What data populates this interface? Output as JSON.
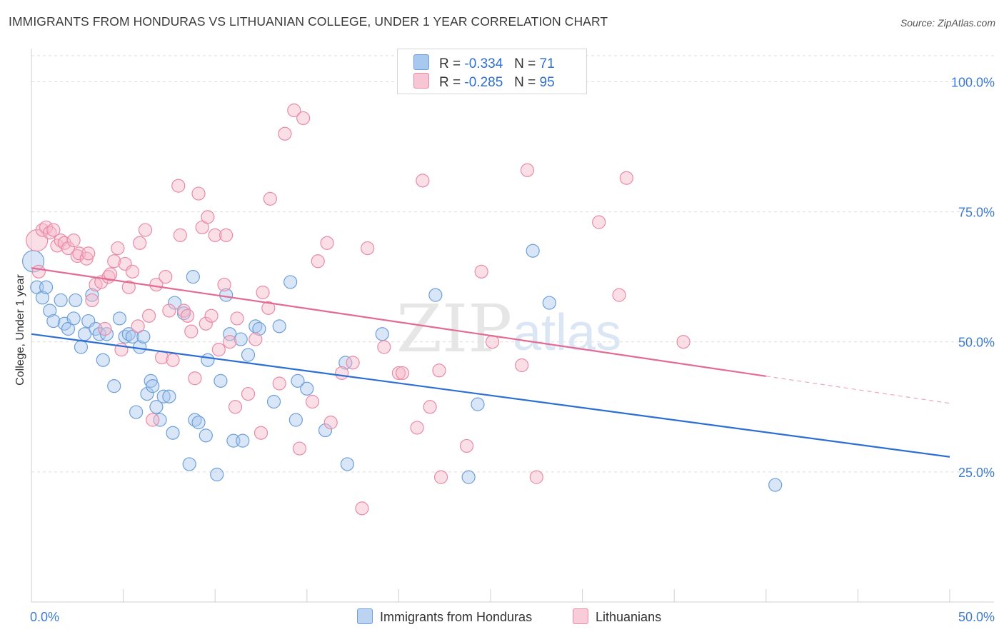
{
  "header": {
    "title": "IMMIGRANTS FROM HONDURAS VS LITHUANIAN COLLEGE, UNDER 1 YEAR CORRELATION CHART",
    "source": "Source: ZipAtlas.com"
  },
  "legend_stats": [
    {
      "r_label": "R =",
      "r_value": "-0.334",
      "n_label": "N =",
      "n_value": "71",
      "color": "#a8c8f0"
    },
    {
      "r_label": "R =",
      "r_value": "-0.285",
      "n_label": "N =",
      "n_value": "95",
      "color": "#f6b8ca"
    }
  ],
  "watermark": {
    "zip": "ZIP",
    "atlas": "atlas"
  },
  "bottom_legend": [
    {
      "label": "Immigrants from Honduras",
      "color": "#a8c8f0"
    },
    {
      "label": "Lithuanians",
      "color": "#f6b8ca"
    }
  ],
  "chart_data": {
    "type": "scatter",
    "title": "IMMIGRANTS FROM HONDURAS VS LITHUANIAN COLLEGE, UNDER 1 YEAR CORRELATION CHART",
    "xlabel": "",
    "ylabel": "College, Under 1 year",
    "xlim": [
      0,
      50
    ],
    "ylim": [
      0,
      105
    ],
    "x_tick_labels": [
      {
        "value": 0,
        "label": "0.0%"
      },
      {
        "value": 50,
        "label": "50.0%"
      }
    ],
    "y_tick_labels": [
      {
        "value": 25,
        "label": "25.0%"
      },
      {
        "value": 50,
        "label": "50.0%"
      },
      {
        "value": 75,
        "label": "75.0%"
      },
      {
        "value": 100,
        "label": "100.0%"
      }
    ],
    "grid": true,
    "series": [
      {
        "name": "Immigrants from Honduras",
        "color": "#a8c8f0",
        "stroke": "#6d9fd9",
        "trend_color": "#2b6fd4",
        "trend": {
          "x0": 0,
          "y0": 51.5,
          "x1": 50,
          "y1": 27.9,
          "solid_until": 50
        },
        "points": [
          [
            0.1,
            65.5
          ],
          [
            0.3,
            60.5
          ],
          [
            0.6,
            58.5
          ],
          [
            0.8,
            60.5
          ],
          [
            1.0,
            56.0
          ],
          [
            1.2,
            54.0
          ],
          [
            1.6,
            58.0
          ],
          [
            1.8,
            53.5
          ],
          [
            2.0,
            52.5
          ],
          [
            2.3,
            54.5
          ],
          [
            2.4,
            58.0
          ],
          [
            2.7,
            49.0
          ],
          [
            2.9,
            51.5
          ],
          [
            3.1,
            54.0
          ],
          [
            3.3,
            59.0
          ],
          [
            3.5,
            52.5
          ],
          [
            3.7,
            51.5
          ],
          [
            3.9,
            46.5
          ],
          [
            4.1,
            51.5
          ],
          [
            4.5,
            41.5
          ],
          [
            4.8,
            54.5
          ],
          [
            5.1,
            51.0
          ],
          [
            5.3,
            51.5
          ],
          [
            5.5,
            51.0
          ],
          [
            5.7,
            36.5
          ],
          [
            5.9,
            49.0
          ],
          [
            6.1,
            51.0
          ],
          [
            6.3,
            40.0
          ],
          [
            6.5,
            42.5
          ],
          [
            6.6,
            41.5
          ],
          [
            6.8,
            37.5
          ],
          [
            7.0,
            35.0
          ],
          [
            7.2,
            39.5
          ],
          [
            7.5,
            39.5
          ],
          [
            7.7,
            32.5
          ],
          [
            7.8,
            57.5
          ],
          [
            8.3,
            55.5
          ],
          [
            8.6,
            26.5
          ],
          [
            8.8,
            62.5
          ],
          [
            8.9,
            35.0
          ],
          [
            9.1,
            34.5
          ],
          [
            9.5,
            32.0
          ],
          [
            9.6,
            46.5
          ],
          [
            10.1,
            24.5
          ],
          [
            10.3,
            42.5
          ],
          [
            10.6,
            59.0
          ],
          [
            10.8,
            51.5
          ],
          [
            11.0,
            31.0
          ],
          [
            11.5,
            31.0
          ],
          [
            11.4,
            50.5
          ],
          [
            11.8,
            47.5
          ],
          [
            12.2,
            53.0
          ],
          [
            12.4,
            52.5
          ],
          [
            13.2,
            38.5
          ],
          [
            13.5,
            53.0
          ],
          [
            14.1,
            61.5
          ],
          [
            14.4,
            35.0
          ],
          [
            14.5,
            42.5
          ],
          [
            15.0,
            41.0
          ],
          [
            16.0,
            33.0
          ],
          [
            17.1,
            46.0
          ],
          [
            17.2,
            26.5
          ],
          [
            19.1,
            51.5
          ],
          [
            22.0,
            59.0
          ],
          [
            23.8,
            24.0
          ],
          [
            24.3,
            38.0
          ],
          [
            27.3,
            67.5
          ],
          [
            28.2,
            57.5
          ],
          [
            40.5,
            22.5
          ]
        ]
      },
      {
        "name": "Lithuanians",
        "color": "#f6b8ca",
        "stroke": "#e98aa6",
        "trend_color": "#e36a92",
        "trend": {
          "x0": 0,
          "y0": 64.2,
          "x1": 50,
          "y1": 38.2,
          "solid_until": 40
        },
        "points": [
          [
            0.3,
            69.5
          ],
          [
            0.4,
            63.5
          ],
          [
            0.6,
            71.5
          ],
          [
            0.8,
            72.0
          ],
          [
            1.0,
            71.0
          ],
          [
            1.2,
            71.5
          ],
          [
            1.4,
            68.5
          ],
          [
            1.6,
            69.5
          ],
          [
            1.8,
            69.0
          ],
          [
            2.0,
            68.0
          ],
          [
            2.3,
            69.5
          ],
          [
            2.5,
            66.5
          ],
          [
            2.6,
            67.0
          ],
          [
            3.0,
            66.0
          ],
          [
            3.1,
            67.0
          ],
          [
            3.3,
            58.0
          ],
          [
            3.5,
            61.0
          ],
          [
            3.8,
            61.5
          ],
          [
            4.0,
            52.5
          ],
          [
            4.2,
            62.5
          ],
          [
            4.3,
            63.0
          ],
          [
            4.5,
            65.5
          ],
          [
            4.7,
            68.0
          ],
          [
            4.9,
            48.5
          ],
          [
            5.1,
            65.0
          ],
          [
            5.3,
            60.5
          ],
          [
            5.5,
            63.5
          ],
          [
            5.8,
            53.0
          ],
          [
            5.9,
            69.0
          ],
          [
            6.2,
            71.5
          ],
          [
            6.4,
            55.0
          ],
          [
            6.6,
            35.0
          ],
          [
            6.8,
            61.0
          ],
          [
            7.1,
            47.0
          ],
          [
            7.3,
            62.5
          ],
          [
            7.5,
            56.0
          ],
          [
            7.7,
            46.5
          ],
          [
            8.0,
            80.0
          ],
          [
            8.1,
            70.5
          ],
          [
            8.3,
            56.0
          ],
          [
            8.5,
            55.0
          ],
          [
            8.7,
            52.0
          ],
          [
            8.9,
            43.0
          ],
          [
            9.1,
            78.5
          ],
          [
            9.3,
            72.0
          ],
          [
            9.5,
            53.5
          ],
          [
            9.6,
            74.0
          ],
          [
            9.8,
            55.0
          ],
          [
            10.0,
            70.5
          ],
          [
            10.2,
            48.5
          ],
          [
            10.5,
            61.0
          ],
          [
            10.6,
            70.5
          ],
          [
            10.8,
            50.0
          ],
          [
            11.1,
            37.5
          ],
          [
            11.2,
            54.5
          ],
          [
            11.8,
            40.0
          ],
          [
            12.2,
            50.5
          ],
          [
            12.5,
            32.5
          ],
          [
            12.6,
            59.5
          ],
          [
            12.9,
            56.5
          ],
          [
            13.0,
            77.5
          ],
          [
            13.5,
            42.0
          ],
          [
            13.8,
            90.0
          ],
          [
            14.3,
            94.5
          ],
          [
            14.6,
            29.5
          ],
          [
            14.8,
            93.0
          ],
          [
            15.3,
            38.5
          ],
          [
            15.6,
            65.5
          ],
          [
            16.1,
            69.0
          ],
          [
            16.3,
            34.5
          ],
          [
            16.9,
            44.0
          ],
          [
            17.5,
            46.0
          ],
          [
            18.0,
            18.0
          ],
          [
            18.3,
            68.0
          ],
          [
            19.2,
            49.0
          ],
          [
            20.0,
            44.0
          ],
          [
            20.2,
            44.0
          ],
          [
            21.0,
            33.5
          ],
          [
            21.3,
            81.0
          ],
          [
            21.7,
            37.5
          ],
          [
            22.2,
            44.5
          ],
          [
            22.3,
            24.0
          ],
          [
            23.7,
            30.0
          ],
          [
            24.5,
            63.5
          ],
          [
            25.1,
            50.0
          ],
          [
            26.7,
            45.5
          ],
          [
            27.0,
            83.0
          ],
          [
            27.5,
            24.0
          ],
          [
            30.9,
            73.0
          ],
          [
            32.0,
            59.0
          ],
          [
            32.4,
            81.5
          ],
          [
            35.5,
            50.0
          ]
        ]
      }
    ]
  }
}
